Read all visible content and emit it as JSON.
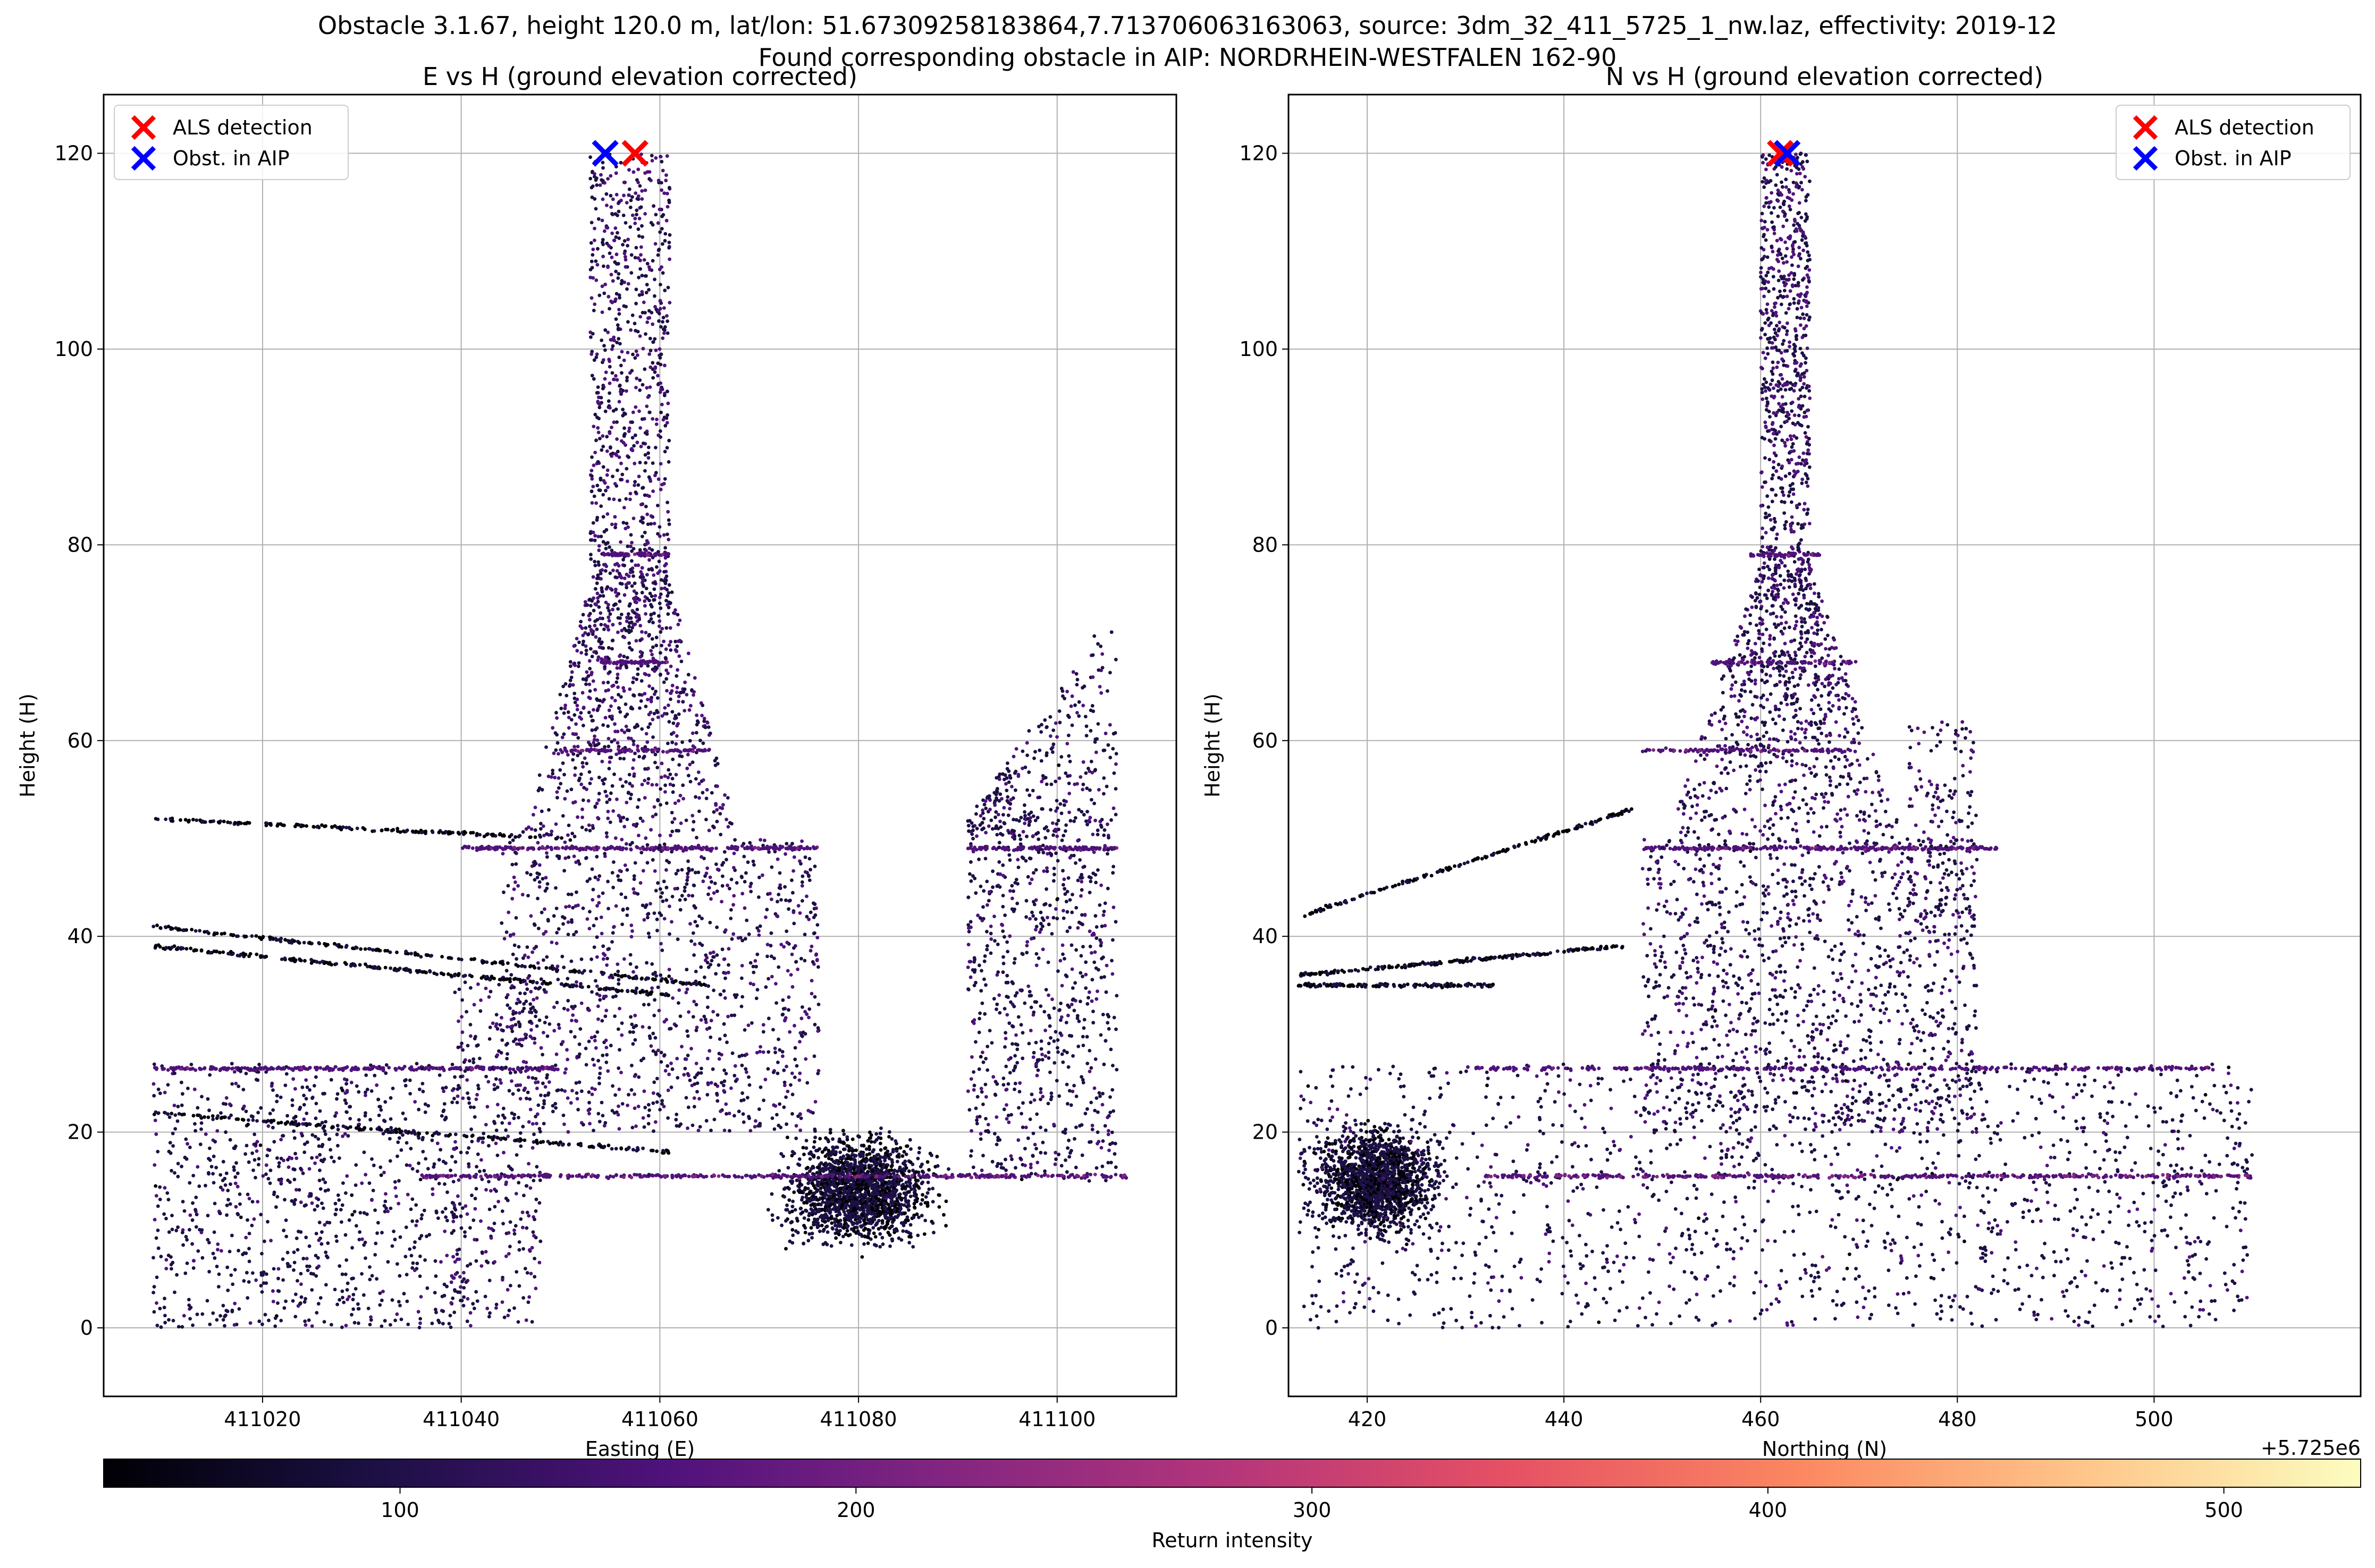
{
  "figure": {
    "suptitle_line1": "Obstacle 3.1.67, height 120.0 m, lat/lon: 51.67309258183864,7.713706063163063, source: 3dm_32_411_5725_1_nw.laz, effectivity: 2019-12",
    "suptitle_line2": "Found corresponding obstacle in AIP: NORDRHEIN-WESTFALEN 162-90"
  },
  "colors": {
    "als_detection": "#ff0000",
    "obst_aip": "#0000ff",
    "grid": "#b0b0b0",
    "colormap": "magma"
  },
  "colorbar": {
    "label": "Return intensity",
    "range": [
      35,
      530
    ],
    "ticks": [
      100,
      200,
      300,
      400,
      500
    ],
    "tick_labels": [
      "100",
      "200",
      "300",
      "400",
      "500"
    ],
    "orientation": "horizontal"
  },
  "chart_data": [
    {
      "type": "scatter",
      "title": "E vs H (ground elevation corrected)",
      "xlabel": "Easting (E)",
      "ylabel": "Height (H)",
      "xlim": [
        411004,
        411112
      ],
      "ylim": [
        -7,
        126
      ],
      "xticks": [
        411020,
        411040,
        411060,
        411080,
        411100
      ],
      "xtick_labels": [
        "411020",
        "411040",
        "411060",
        "411080",
        "411100"
      ],
      "yticks": [
        0,
        20,
        40,
        60,
        80,
        100,
        120
      ],
      "ytick_labels": [
        "0",
        "20",
        "40",
        "60",
        "80",
        "100",
        "120"
      ],
      "offset_label": "",
      "grid": true,
      "legend": {
        "placement": "upper-left",
        "entries": [
          {
            "label": "ALS detection",
            "color": "#ff0000",
            "marker": "x"
          },
          {
            "label": "Obst. in AIP",
            "color": "#0000ff",
            "marker": "x"
          }
        ]
      },
      "markers": {
        "als_detection": {
          "x": 411057.5,
          "y": 120
        },
        "obst_aip": {
          "x": 411054.5,
          "y": 120
        }
      },
      "point_cloud_description": "LiDAR returns colored by return intensity"
    },
    {
      "type": "scatter",
      "title": "N vs H (ground elevation corrected)",
      "xlabel": "Northing (N)",
      "ylabel": "Height (H)",
      "xlim": [
        412,
        521
      ],
      "ylim": [
        -7,
        126
      ],
      "xticks": [
        420,
        440,
        460,
        480,
        500
      ],
      "xtick_labels": [
        "420",
        "440",
        "460",
        "480",
        "500"
      ],
      "yticks": [
        0,
        20,
        40,
        60,
        80,
        100,
        120
      ],
      "ytick_labels": [
        "0",
        "20",
        "40",
        "60",
        "80",
        "100",
        "120"
      ],
      "offset_label": "+5.725e6",
      "grid": true,
      "legend": {
        "placement": "upper-right",
        "entries": [
          {
            "label": "ALS detection",
            "color": "#ff0000",
            "marker": "x"
          },
          {
            "label": "Obst. in AIP",
            "color": "#0000ff",
            "marker": "x"
          }
        ]
      },
      "markers": {
        "als_detection": {
          "x": 462.0,
          "y": 120
        },
        "obst_aip": {
          "x": 462.7,
          "y": 120
        }
      },
      "point_cloud_description": "LiDAR returns colored by return intensity"
    }
  ]
}
